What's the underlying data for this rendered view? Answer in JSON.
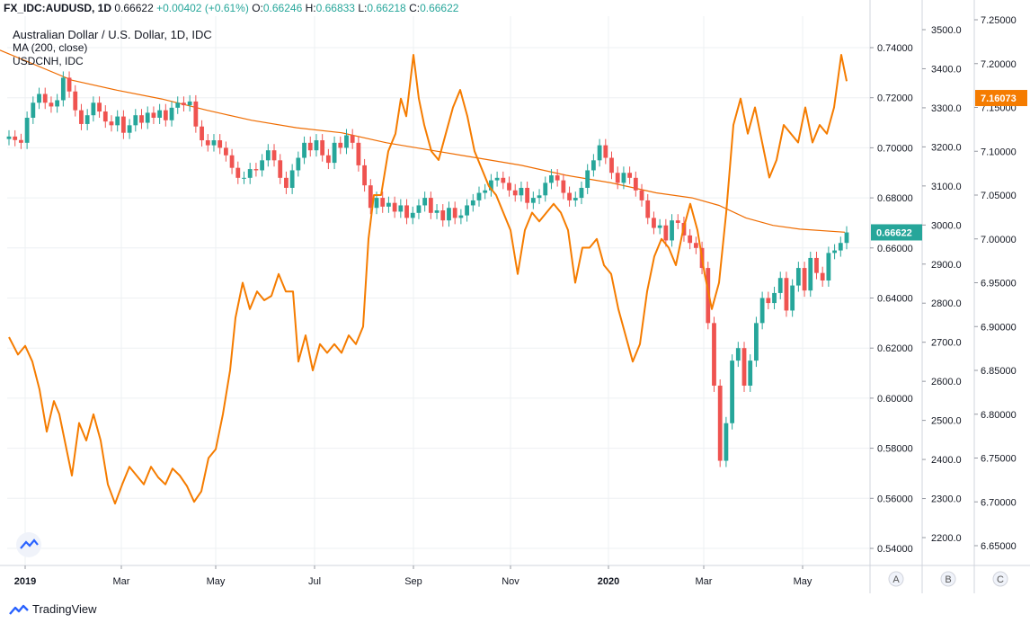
{
  "header": {
    "symbol": "FX_IDC:AUDUSD, 1D",
    "last": "0.66622",
    "change": "+0.00402 (+0.61%)",
    "o_label": "O:",
    "o_value": "0.66246",
    "h_label": "H:",
    "h_value": "0.66833",
    "l_label": "L:",
    "l_value": "0.66218",
    "c_label": "C:",
    "c_value": "0.66622"
  },
  "legend": {
    "main_series": "Australian Dollar / U.S. Dollar, 1D, IDC",
    "indicator": "MA (200, close)",
    "compare_series": "USDCNH, IDC"
  },
  "chart_data": {
    "type": "candlestick+line",
    "x_ticks": [
      "2019",
      "Mar",
      "May",
      "Jul",
      "Sep",
      "Nov",
      "2020",
      "Mar",
      "May"
    ],
    "axis_a": {
      "ticks": [
        "0.74000",
        "0.72000",
        "0.70000",
        "0.68000",
        "0.66000",
        "0.64000",
        "0.62000",
        "0.60000",
        "0.58000",
        "0.56000",
        "0.54000"
      ],
      "last_label": "0.66622",
      "last_value": 0.66622
    },
    "axis_b": {
      "ticks": [
        "3500.0",
        "3400.0",
        "3300.0",
        "3200.0",
        "3100.0",
        "3000.0",
        "2900.0",
        "2800.0",
        "2700.0",
        "2600.0",
        "2500.0",
        "2400.0",
        "2300.0",
        "2200.0"
      ]
    },
    "axis_c": {
      "ticks": [
        "7.25000",
        "7.20000",
        "7.15000",
        "7.10000",
        "7.05000",
        "7.00000",
        "6.95000",
        "6.90000",
        "6.85000",
        "6.80000",
        "6.75000",
        "6.70000",
        "6.65000"
      ],
      "last_label": "7.16073",
      "last_value": 7.16073
    },
    "series": [
      {
        "name": "Australian Dollar / U.S. Dollar, 1D, IDC",
        "kind": "candles",
        "color_up": "#26a69a",
        "color_down": "#ef5350",
        "closes": [
          0.7045,
          0.7031,
          0.702,
          0.712,
          0.718,
          0.7215,
          0.718,
          0.7165,
          0.719,
          0.728,
          0.7225,
          0.715,
          0.7095,
          0.713,
          0.718,
          0.7145,
          0.7105,
          0.709,
          0.7125,
          0.706,
          0.709,
          0.713,
          0.71,
          0.714,
          0.712,
          0.715,
          0.711,
          0.716,
          0.718,
          0.717,
          0.7185,
          0.7085,
          0.703,
          0.701,
          0.703,
          0.7,
          0.697,
          0.692,
          0.688,
          0.688,
          0.6915,
          0.691,
          0.695,
          0.699,
          0.695,
          0.688,
          0.684,
          0.691,
          0.696,
          0.702,
          0.699,
          0.703,
          0.697,
          0.694,
          0.702,
          0.7,
          0.705,
          0.702,
          0.693,
          0.685,
          0.676,
          0.68,
          0.6765,
          0.678,
          0.6745,
          0.677,
          0.672,
          0.674,
          0.677,
          0.68,
          0.674,
          0.675,
          0.671,
          0.676,
          0.672,
          0.673,
          0.677,
          0.679,
          0.682,
          0.683,
          0.687,
          0.688,
          0.686,
          0.683,
          0.681,
          0.684,
          0.678,
          0.68,
          0.681,
          0.686,
          0.689,
          0.687,
          0.682,
          0.679,
          0.68,
          0.684,
          0.691,
          0.695,
          0.701,
          0.696,
          0.69,
          0.686,
          0.69,
          0.688,
          0.683,
          0.679,
          0.672,
          0.668,
          0.669,
          0.663,
          0.671,
          0.67,
          0.665,
          0.662,
          0.66,
          0.652,
          0.63,
          0.605,
          0.575,
          0.59,
          0.615,
          0.62,
          0.605,
          0.615,
          0.63,
          0.64,
          0.638,
          0.642,
          0.648,
          0.635,
          0.645,
          0.652,
          0.643,
          0.656,
          0.65,
          0.647,
          0.658,
          0.659,
          0.662,
          0.6662
        ]
      },
      {
        "name": "MA (200, close)",
        "kind": "line",
        "color": "#ef6c00",
        "points": [
          [
            0,
            0.739
          ],
          [
            40,
            0.733
          ],
          [
            80,
            0.727
          ],
          [
            130,
            0.723
          ],
          [
            180,
            0.7195
          ],
          [
            230,
            0.715
          ],
          [
            280,
            0.711
          ],
          [
            330,
            0.708
          ],
          [
            380,
            0.706
          ],
          [
            430,
            0.702
          ],
          [
            480,
            0.699
          ],
          [
            530,
            0.696
          ],
          [
            580,
            0.693
          ],
          [
            630,
            0.689
          ],
          [
            680,
            0.686
          ],
          [
            730,
            0.682
          ],
          [
            770,
            0.68
          ],
          [
            800,
            0.677
          ],
          [
            830,
            0.672
          ],
          [
            860,
            0.669
          ],
          [
            890,
            0.6675
          ],
          [
            940,
            0.6663
          ]
        ]
      },
      {
        "name": "USDCNH, IDC",
        "kind": "line",
        "color": "#f57c00",
        "axis": "c",
        "points": [
          [
            10,
            6.888
          ],
          [
            20,
            6.868
          ],
          [
            28,
            6.878
          ],
          [
            36,
            6.86
          ],
          [
            44,
            6.828
          ],
          [
            52,
            6.78
          ],
          [
            60,
            6.815
          ],
          [
            66,
            6.8
          ],
          [
            72,
            6.77
          ],
          [
            80,
            6.73
          ],
          [
            88,
            6.79
          ],
          [
            96,
            6.77
          ],
          [
            104,
            6.8
          ],
          [
            112,
            6.77
          ],
          [
            120,
            6.72
          ],
          [
            128,
            6.698
          ],
          [
            136,
            6.72
          ],
          [
            144,
            6.74
          ],
          [
            152,
            6.73
          ],
          [
            160,
            6.72
          ],
          [
            168,
            6.74
          ],
          [
            176,
            6.728
          ],
          [
            184,
            6.72
          ],
          [
            192,
            6.738
          ],
          [
            200,
            6.73
          ],
          [
            208,
            6.718
          ],
          [
            216,
            6.7
          ],
          [
            224,
            6.712
          ],
          [
            232,
            6.75
          ],
          [
            240,
            6.76
          ],
          [
            248,
            6.8
          ],
          [
            256,
            6.85
          ],
          [
            262,
            6.91
          ],
          [
            270,
            6.95
          ],
          [
            278,
            6.92
          ],
          [
            286,
            6.94
          ],
          [
            294,
            6.93
          ],
          [
            302,
            6.935
          ],
          [
            310,
            6.96
          ],
          [
            318,
            6.94
          ],
          [
            326,
            6.94
          ],
          [
            332,
            6.86
          ],
          [
            340,
            6.89
          ],
          [
            348,
            6.85
          ],
          [
            356,
            6.88
          ],
          [
            364,
            6.87
          ],
          [
            372,
            6.88
          ],
          [
            380,
            6.87
          ],
          [
            388,
            6.89
          ],
          [
            396,
            6.88
          ],
          [
            404,
            6.9
          ],
          [
            410,
            7.0
          ],
          [
            416,
            7.05
          ],
          [
            424,
            7.05
          ],
          [
            432,
            7.1
          ],
          [
            440,
            7.12
          ],
          [
            446,
            7.16
          ],
          [
            452,
            7.14
          ],
          [
            460,
            7.21
          ],
          [
            466,
            7.16
          ],
          [
            472,
            7.13
          ],
          [
            480,
            7.1
          ],
          [
            488,
            7.09
          ],
          [
            496,
            7.12
          ],
          [
            504,
            7.15
          ],
          [
            512,
            7.17
          ],
          [
            520,
            7.14
          ],
          [
            528,
            7.1
          ],
          [
            536,
            7.08
          ],
          [
            544,
            7.06
          ],
          [
            552,
            7.05
          ],
          [
            560,
            7.03
          ],
          [
            568,
            7.01
          ],
          [
            576,
            6.96
          ],
          [
            584,
            7.01
          ],
          [
            592,
            7.03
          ],
          [
            600,
            7.02
          ],
          [
            608,
            7.03
          ],
          [
            616,
            7.04
          ],
          [
            624,
            7.03
          ],
          [
            632,
            7.01
          ],
          [
            640,
            6.95
          ],
          [
            648,
            6.99
          ],
          [
            656,
            6.99
          ],
          [
            664,
            7.0
          ],
          [
            672,
            6.97
          ],
          [
            680,
            6.96
          ],
          [
            688,
            6.92
          ],
          [
            696,
            6.89
          ],
          [
            704,
            6.86
          ],
          [
            712,
            6.88
          ],
          [
            720,
            6.94
          ],
          [
            728,
            6.98
          ],
          [
            736,
            7.0
          ],
          [
            744,
            6.99
          ],
          [
            752,
            6.97
          ],
          [
            760,
            7.01
          ],
          [
            768,
            7.04
          ],
          [
            776,
            7.01
          ],
          [
            784,
            6.96
          ],
          [
            792,
            6.92
          ],
          [
            800,
            6.95
          ],
          [
            808,
            7.03
          ],
          [
            816,
            7.13
          ],
          [
            824,
            7.16
          ],
          [
            832,
            7.12
          ],
          [
            840,
            7.15
          ],
          [
            848,
            7.11
          ],
          [
            856,
            7.07
          ],
          [
            864,
            7.09
          ],
          [
            872,
            7.13
          ],
          [
            880,
            7.12
          ],
          [
            888,
            7.11
          ],
          [
            896,
            7.15
          ],
          [
            904,
            7.11
          ],
          [
            912,
            7.13
          ],
          [
            920,
            7.12
          ],
          [
            928,
            7.15
          ],
          [
            936,
            7.21
          ],
          [
            942,
            7.18
          ]
        ]
      }
    ],
    "grid": true
  },
  "pane_buttons": [
    "A",
    "B",
    "C"
  ],
  "footer": {
    "brand": "TradingView"
  }
}
